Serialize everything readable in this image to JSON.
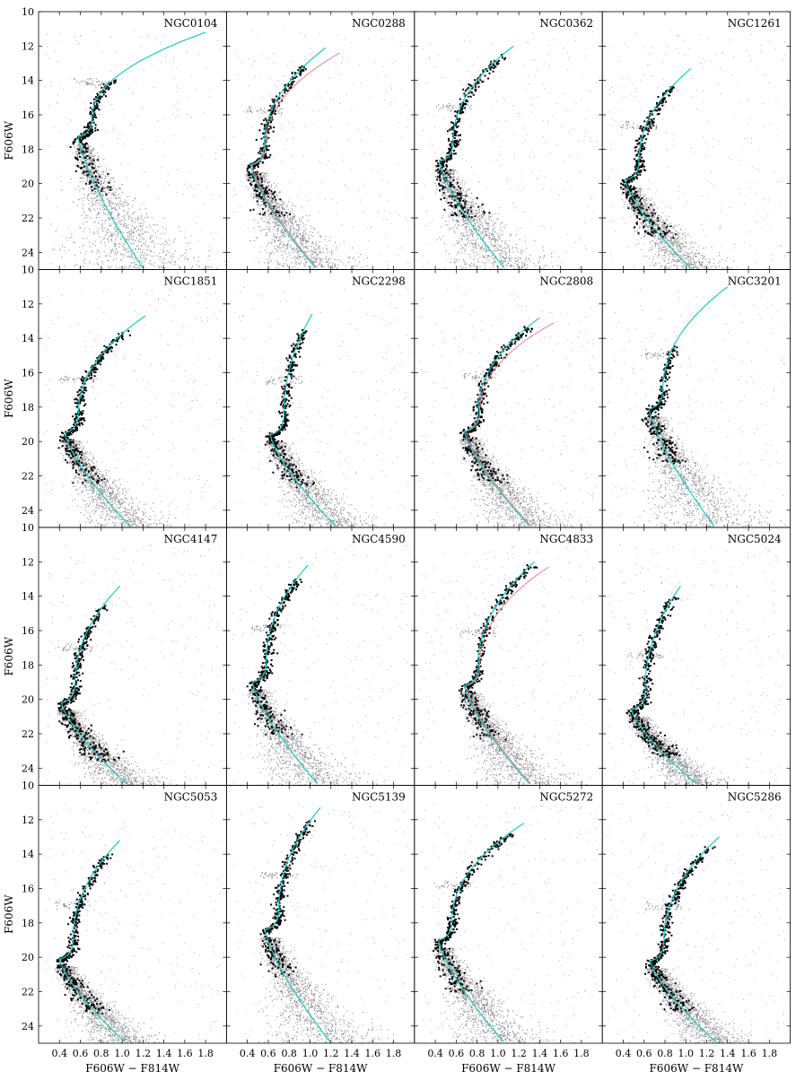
{
  "figure": {
    "ylabel": "F606W",
    "xlabel": "F606W − F814W"
  },
  "chart_data": {
    "type": "scatter",
    "xlim": [
      0.2,
      2.0
    ],
    "ylim": [
      25,
      10
    ],
    "xticks": [
      0.4,
      0.6,
      0.8,
      1.0,
      1.2,
      1.4,
      1.6,
      1.8
    ],
    "yticks": [
      10,
      12,
      14,
      16,
      18,
      20,
      22,
      24
    ],
    "xlabel": "F606W − F814W",
    "ylabel": "F606W",
    "grid": false,
    "colors": {
      "field": "#8c8c8c",
      "fiducial": "#000000",
      "isochrone": "#1ec8c8",
      "isochrone_alt": "#e8848c"
    },
    "panels": [
      {
        "name": "NGC0104",
        "to_x": 0.58,
        "to_y": 17.3,
        "rgb_x": 1.8,
        "rgb_y": 11.2,
        "fid_top": 14.0,
        "fid_bottom": 20.4,
        "red_alt": false
      },
      {
        "name": "NGC0288",
        "to_x": 0.43,
        "to_y": 18.9,
        "rgb_x": 1.15,
        "rgb_y": 12.1,
        "fid_top": 13.2,
        "fid_bottom": 21.8,
        "red_alt": true
      },
      {
        "name": "NGC0362",
        "to_x": 0.44,
        "to_y": 18.7,
        "rgb_x": 1.15,
        "rgb_y": 12.0,
        "fid_top": 12.5,
        "fid_bottom": 21.9,
        "red_alt": false
      },
      {
        "name": "NGC1261",
        "to_x": 0.42,
        "to_y": 19.8,
        "rgb_x": 1.05,
        "rgb_y": 13.3,
        "fid_top": 14.3,
        "fid_bottom": 23.1,
        "red_alt": false
      },
      {
        "name": "NGC1851",
        "to_x": 0.45,
        "to_y": 19.5,
        "rgb_x": 1.22,
        "rgb_y": 12.7,
        "fid_top": 13.5,
        "fid_bottom": 22.4,
        "red_alt": false
      },
      {
        "name": "NGC2298",
        "to_x": 0.62,
        "to_y": 19.6,
        "rgb_x": 1.02,
        "rgb_y": 12.6,
        "fid_top": 13.5,
        "fid_bottom": 22.5,
        "red_alt": false
      },
      {
        "name": "NGC2808",
        "to_x": 0.68,
        "to_y": 19.4,
        "rgb_x": 1.4,
        "rgb_y": 12.8,
        "fid_top": 13.3,
        "fid_bottom": 22.4,
        "red_alt": true
      },
      {
        "name": "NGC3201",
        "to_x": 0.65,
        "to_y": 18.1,
        "rgb_x": 1.4,
        "rgb_y": 11.0,
        "fid_top": 14.5,
        "fid_bottom": 21.2,
        "red_alt": false
      },
      {
        "name": "NGC4147",
        "to_x": 0.42,
        "to_y": 20.2,
        "rgb_x": 0.98,
        "rgb_y": 13.4,
        "fid_top": 14.5,
        "fid_bottom": 23.5,
        "red_alt": false
      },
      {
        "name": "NGC4590",
        "to_x": 0.45,
        "to_y": 19.0,
        "rgb_x": 0.98,
        "rgb_y": 12.2,
        "fid_top": 13.0,
        "fid_bottom": 22.1,
        "red_alt": false
      },
      {
        "name": "NGC4833",
        "to_x": 0.68,
        "to_y": 19.2,
        "rgb_x": 1.35,
        "rgb_y": 12.0,
        "fid_top": 12.2,
        "fid_bottom": 22.2,
        "red_alt": true
      },
      {
        "name": "NGC5024",
        "to_x": 0.48,
        "to_y": 20.6,
        "rgb_x": 0.95,
        "rgb_y": 13.4,
        "fid_top": 14.0,
        "fid_bottom": 23.3,
        "red_alt": false
      },
      {
        "name": "NGC5053",
        "to_x": 0.4,
        "to_y": 20.1,
        "rgb_x": 0.98,
        "rgb_y": 13.2,
        "fid_top": 14.0,
        "fid_bottom": 23.2,
        "red_alt": false
      },
      {
        "name": "NGC5139",
        "to_x": 0.57,
        "to_y": 18.4,
        "rgb_x": 1.1,
        "rgb_y": 11.3,
        "fid_top": 12.0,
        "fid_bottom": 21.0,
        "red_alt": false
      },
      {
        "name": "NGC5272",
        "to_x": 0.43,
        "to_y": 19.0,
        "rgb_x": 1.25,
        "rgb_y": 12.2,
        "fid_top": 12.8,
        "fid_bottom": 22.0,
        "red_alt": false
      },
      {
        "name": "NGC5286",
        "to_x": 0.66,
        "to_y": 20.2,
        "rgb_x": 1.32,
        "rgb_y": 13.0,
        "fid_top": 13.5,
        "fid_bottom": 23.1,
        "red_alt": false
      }
    ]
  }
}
